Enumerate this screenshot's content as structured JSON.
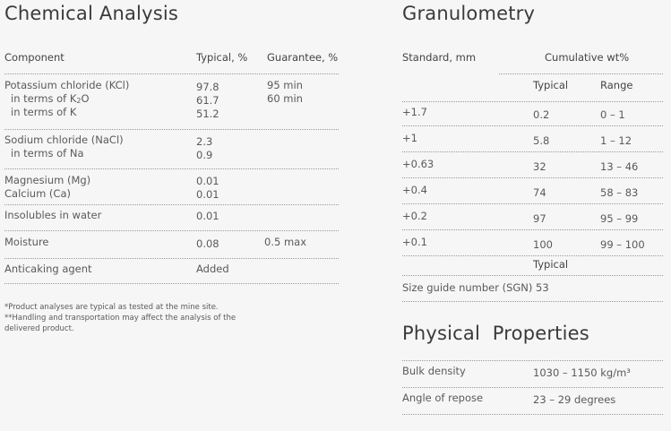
{
  "chemical": {
    "title": "Chemical Analysis",
    "headers": {
      "component": "Component",
      "typical": "Typical, %",
      "guarantee": "Guarantee, %"
    },
    "rows": {
      "kcl": {
        "label": "Potassium chloride (KCl)",
        "typical": "97.8",
        "guarantee": "95 min"
      },
      "k2o": {
        "label_prefix": "in terms of K",
        "label_sub": "2",
        "label_suffix": "O",
        "typical": "61.7",
        "guarantee": "60 min"
      },
      "k": {
        "label": "in terms of K",
        "typical": "51.2"
      },
      "nacl": {
        "label": "Sodium chloride (NaCl)",
        "typical": "2.3"
      },
      "na": {
        "label": "in terms of Na",
        "typical": "0.9"
      },
      "mg": {
        "label": "Magnesium (Mg)",
        "typical": "0.01"
      },
      "ca": {
        "label": "Calcium (Ca)",
        "typical": "0.01"
      },
      "insol": {
        "label": "Insolubles in water",
        "typical": "0.01"
      },
      "moisture": {
        "label": "Moisture",
        "typical": "0.08",
        "guarantee": "0.5 max"
      },
      "anticaking": {
        "label": "Anticaking agent",
        "typical": "Added"
      }
    },
    "footnote1": "*Product analyses are typical as tested at the mine site.",
    "footnote2": "**Handling and transportation may affect the analysis of the",
    "footnote3": "delivered product."
  },
  "granulometry": {
    "title": "Granulometry",
    "standard_header": "Standard, mm",
    "cumulative_header": "Cumulative wt%",
    "typical_header": "Typical",
    "range_header": "Range",
    "rows": [
      {
        "standard": "+1.7",
        "typical": "0.2",
        "range": "0 – 1"
      },
      {
        "standard": "+1",
        "typical": "5.8",
        "range": "1 – 12"
      },
      {
        "standard": "+0.63",
        "typical": "32",
        "range": "13 – 46"
      },
      {
        "standard": "+0.4",
        "typical": "74",
        "range": "58 – 83"
      },
      {
        "standard": "+0.2",
        "typical": "97",
        "range": "95 – 99"
      },
      {
        "standard": "+0.1",
        "typical": "100",
        "range": "99 – 100"
      }
    ],
    "sgn_typical_header": "Typical",
    "sgn_label": "Size guide number (SGN)",
    "sgn_value": "53"
  },
  "physical": {
    "title": "Physical  Properties",
    "bulk_label": "Bulk density",
    "bulk_value": "1030 – 1150 kg/m³",
    "angle_label": "Angle of repose",
    "angle_value": "23 – 29 degrees"
  }
}
